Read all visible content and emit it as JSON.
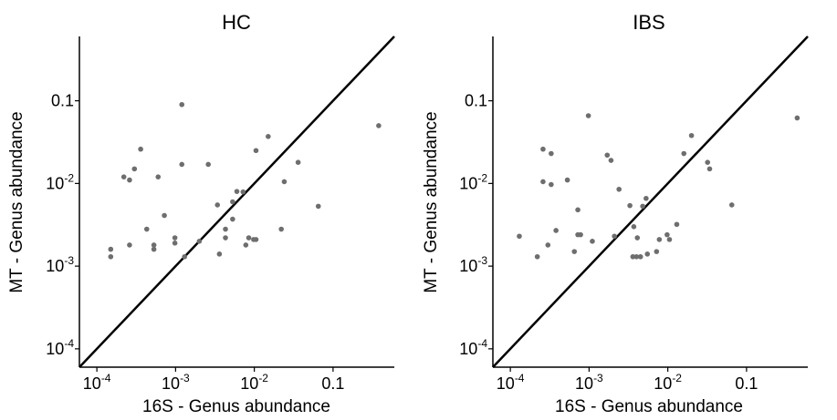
{
  "chart_data": [
    {
      "type": "scatter",
      "title": "HC",
      "xlabel": "16S - Genus abundance",
      "ylabel": "MT - Genus abundance",
      "x_scale": "log10",
      "y_scale": "log10",
      "xlim": [
        6e-05,
        0.6
      ],
      "ylim": [
        6e-05,
        0.6
      ],
      "x_ticks": [
        {
          "value": 0.0001,
          "base": "10",
          "exp": "-4"
        },
        {
          "value": 0.001,
          "base": "10",
          "exp": "-3"
        },
        {
          "value": 0.01,
          "base": "10",
          "exp": "-2"
        },
        {
          "value": 0.1,
          "base": "0.1",
          "exp": ""
        }
      ],
      "y_ticks": [
        {
          "value": 0.0001,
          "base": "10",
          "exp": "-4"
        },
        {
          "value": 0.001,
          "base": "10",
          "exp": "-3"
        },
        {
          "value": 0.01,
          "base": "10",
          "exp": "-2"
        },
        {
          "value": 0.1,
          "base": "0.1",
          "exp": ""
        }
      ],
      "identity_line": true,
      "grid": false,
      "colors": {
        "points": "#6e6e6e",
        "line": "#000000"
      },
      "points": [
        {
          "x": 0.00015,
          "y": 0.0016
        },
        {
          "x": 0.00015,
          "y": 0.0013
        },
        {
          "x": 0.00022,
          "y": 0.012
        },
        {
          "x": 0.00026,
          "y": 0.011
        },
        {
          "x": 0.00026,
          "y": 0.0018
        },
        {
          "x": 0.0003,
          "y": 0.015
        },
        {
          "x": 0.00036,
          "y": 0.026
        },
        {
          "x": 0.00043,
          "y": 0.0028
        },
        {
          "x": 0.00053,
          "y": 0.0018
        },
        {
          "x": 0.00053,
          "y": 0.0016
        },
        {
          "x": 0.0006,
          "y": 0.012
        },
        {
          "x": 0.00072,
          "y": 0.0041
        },
        {
          "x": 0.00098,
          "y": 0.0022
        },
        {
          "x": 0.00098,
          "y": 0.0019
        },
        {
          "x": 0.0012,
          "y": 0.09
        },
        {
          "x": 0.0012,
          "y": 0.017
        },
        {
          "x": 0.0013,
          "y": 0.0013
        },
        {
          "x": 0.002,
          "y": 0.002
        },
        {
          "x": 0.0026,
          "y": 0.017
        },
        {
          "x": 0.0034,
          "y": 0.0055
        },
        {
          "x": 0.0036,
          "y": 0.0014
        },
        {
          "x": 0.0043,
          "y": 0.0028
        },
        {
          "x": 0.0043,
          "y": 0.0022
        },
        {
          "x": 0.0053,
          "y": 0.006
        },
        {
          "x": 0.0053,
          "y": 0.0037
        },
        {
          "x": 0.006,
          "y": 0.008
        },
        {
          "x": 0.0072,
          "y": 0.0079
        },
        {
          "x": 0.0078,
          "y": 0.0018
        },
        {
          "x": 0.0085,
          "y": 0.0022
        },
        {
          "x": 0.0098,
          "y": 0.0021
        },
        {
          "x": 0.0105,
          "y": 0.0021
        },
        {
          "x": 0.0105,
          "y": 0.025
        },
        {
          "x": 0.015,
          "y": 0.037
        },
        {
          "x": 0.022,
          "y": 0.0028
        },
        {
          "x": 0.024,
          "y": 0.0105
        },
        {
          "x": 0.036,
          "y": 0.018
        },
        {
          "x": 0.065,
          "y": 0.0053
        },
        {
          "x": 0.38,
          "y": 0.05
        }
      ]
    },
    {
      "type": "scatter",
      "title": "IBS",
      "xlabel": "16S - Genus abundance",
      "ylabel": "MT - Genus abundance",
      "x_scale": "log10",
      "y_scale": "log10",
      "xlim": [
        6e-05,
        0.6
      ],
      "ylim": [
        6e-05,
        0.6
      ],
      "x_ticks": [
        {
          "value": 0.0001,
          "base": "10",
          "exp": "-4"
        },
        {
          "value": 0.001,
          "base": "10",
          "exp": "-3"
        },
        {
          "value": 0.01,
          "base": "10",
          "exp": "-2"
        },
        {
          "value": 0.1,
          "base": "0.1",
          "exp": ""
        }
      ],
      "y_ticks": [
        {
          "value": 0.0001,
          "base": "10",
          "exp": "-4"
        },
        {
          "value": 0.001,
          "base": "10",
          "exp": "-3"
        },
        {
          "value": 0.01,
          "base": "10",
          "exp": "-2"
        },
        {
          "value": 0.1,
          "base": "0.1",
          "exp": ""
        }
      ],
      "identity_line": true,
      "grid": false,
      "colors": {
        "points": "#6e6e6e",
        "line": "#000000"
      },
      "points": [
        {
          "x": 0.00013,
          "y": 0.0023
        },
        {
          "x": 0.00022,
          "y": 0.0013
        },
        {
          "x": 0.00026,
          "y": 0.0105
        },
        {
          "x": 0.00026,
          "y": 0.026
        },
        {
          "x": 0.0003,
          "y": 0.0018
        },
        {
          "x": 0.00033,
          "y": 0.0097
        },
        {
          "x": 0.00033,
          "y": 0.023
        },
        {
          "x": 0.00038,
          "y": 0.0027
        },
        {
          "x": 0.00053,
          "y": 0.011
        },
        {
          "x": 0.00065,
          "y": 0.0015
        },
        {
          "x": 0.00072,
          "y": 0.0048
        },
        {
          "x": 0.00072,
          "y": 0.0024
        },
        {
          "x": 0.00078,
          "y": 0.0024
        },
        {
          "x": 0.00098,
          "y": 0.066
        },
        {
          "x": 0.0011,
          "y": 0.002
        },
        {
          "x": 0.0017,
          "y": 0.022
        },
        {
          "x": 0.0019,
          "y": 0.019
        },
        {
          "x": 0.0021,
          "y": 0.0023
        },
        {
          "x": 0.0024,
          "y": 0.0085
        },
        {
          "x": 0.0033,
          "y": 0.0054
        },
        {
          "x": 0.0036,
          "y": 0.0013
        },
        {
          "x": 0.0037,
          "y": 0.003
        },
        {
          "x": 0.004,
          "y": 0.0013
        },
        {
          "x": 0.0041,
          "y": 0.0022
        },
        {
          "x": 0.0045,
          "y": 0.0013
        },
        {
          "x": 0.0048,
          "y": 0.0053
        },
        {
          "x": 0.0053,
          "y": 0.0066
        },
        {
          "x": 0.0055,
          "y": 0.0014
        },
        {
          "x": 0.0072,
          "y": 0.0015
        },
        {
          "x": 0.0078,
          "y": 0.0021
        },
        {
          "x": 0.0098,
          "y": 0.0024
        },
        {
          "x": 0.0105,
          "y": 0.0021
        },
        {
          "x": 0.013,
          "y": 0.0032
        },
        {
          "x": 0.016,
          "y": 0.023
        },
        {
          "x": 0.02,
          "y": 0.038
        },
        {
          "x": 0.032,
          "y": 0.018
        },
        {
          "x": 0.034,
          "y": 0.015
        },
        {
          "x": 0.065,
          "y": 0.0055
        },
        {
          "x": 0.44,
          "y": 0.062
        }
      ]
    }
  ]
}
